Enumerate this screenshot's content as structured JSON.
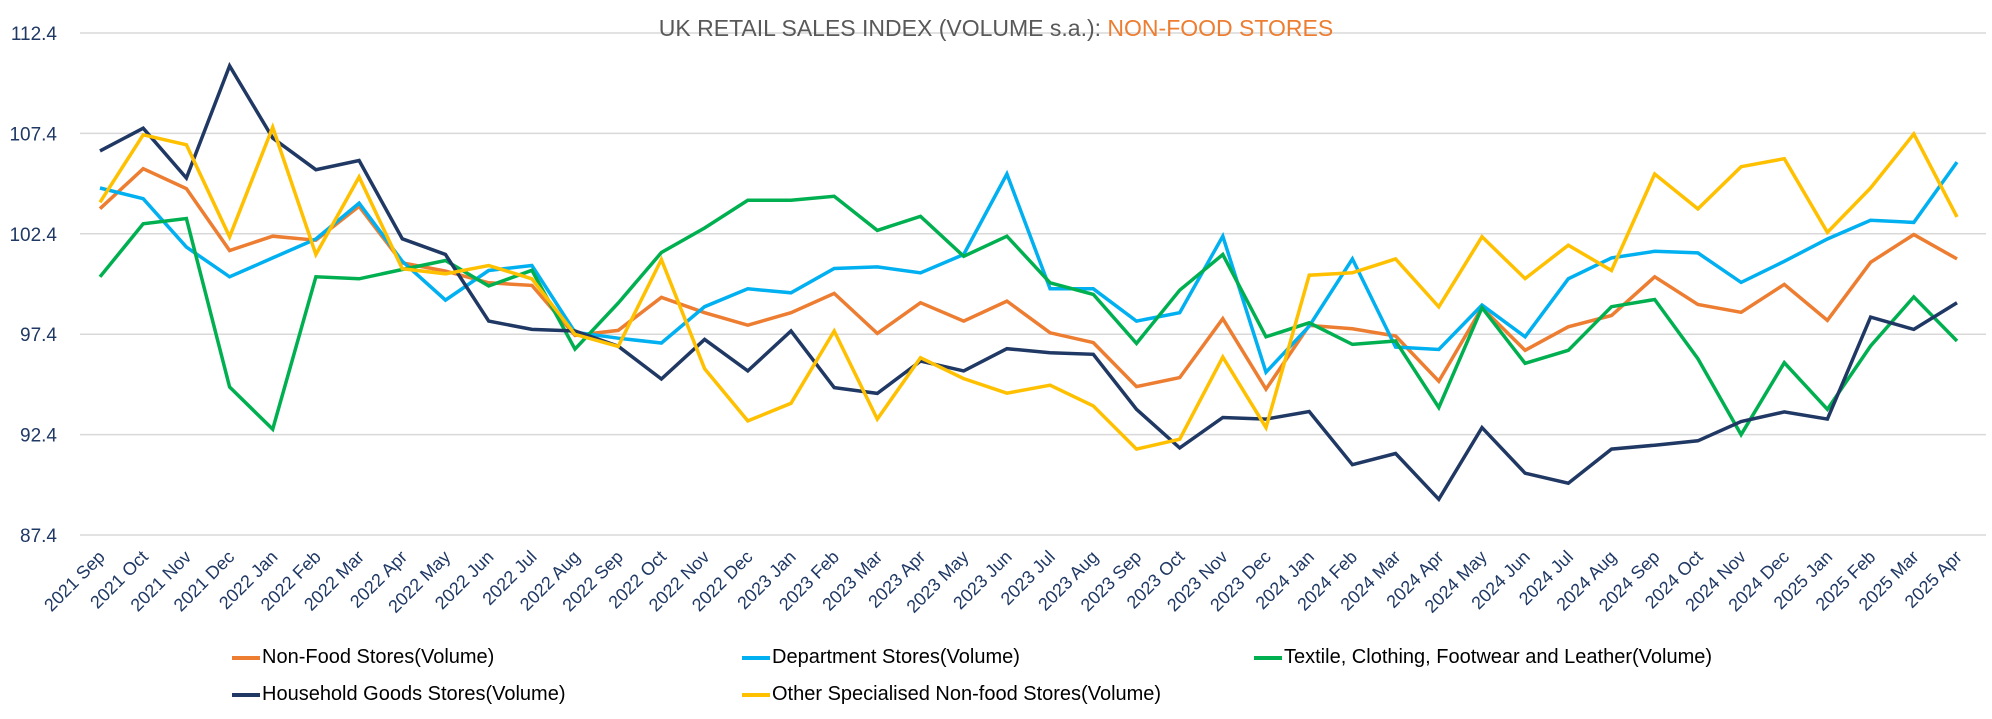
{
  "chart_data": {
    "type": "line",
    "title": "UK RETAIL SALES INDEX (VOLUME s.a.): ",
    "title_accent": "NON-FOOD STORES",
    "title_color": "#595959",
    "title_accent_color": "#ed7d31",
    "xlabel": "",
    "ylabel": "",
    "ylim": [
      87.4,
      112.4
    ],
    "yticks": [
      "87.4",
      "92.4",
      "97.4",
      "102.4",
      "107.4",
      "112.4"
    ],
    "grid": true,
    "legend_position": "bottom",
    "categories": [
      "2021 Sep",
      "2021 Oct",
      "2021 Nov",
      "2021 Dec",
      "2022 Jan",
      "2022 Feb",
      "2022 Mar",
      "2022 Apr",
      "2022 May",
      "2022 Jun",
      "2022 Jul",
      "2022 Aug",
      "2022 Sep",
      "2022 Oct",
      "2022 Nov",
      "2022 Dec",
      "2023 Jan",
      "2023 Feb",
      "2023 Mar",
      "2023 Apr",
      "2023 May",
      "2023 Jun",
      "2023 Jul",
      "2023 Aug",
      "2023 Sep",
      "2023 Oct",
      "2023 Nov",
      "2023 Dec",
      "2024 Jan",
      "2024 Feb",
      "2024 Mar",
      "2024 Apr",
      "2024 May",
      "2024 Jun",
      "2024 Jul",
      "2024 Aug",
      "2024 Sep",
      "2024 Oct",
      "2024 Nov",
      "2024 Dec",
      "2025 Jan",
      "2025 Feb",
      "2025 Mar",
      "2025 Apr"
    ],
    "series": [
      {
        "name": "Non-Food Stores(Volume)",
        "color": "#ed7d31",
        "values": [
          103.65,
          105.64,
          104.65,
          101.57,
          102.28,
          102.08,
          103.77,
          100.95,
          100.54,
          99.96,
          99.83,
          97.34,
          97.59,
          99.24,
          98.47,
          97.85,
          98.47,
          99.43,
          97.44,
          98.97,
          98.05,
          99.05,
          97.47,
          96.98,
          94.79,
          95.24,
          98.17,
          94.66,
          97.84,
          97.67,
          97.31,
          95.06,
          98.72,
          96.6,
          97.77,
          98.33,
          100.26,
          98.88,
          98.49,
          99.88,
          98.09,
          100.98,
          102.36,
          101.15
        ]
      },
      {
        "name": "Department Stores(Volume)",
        "color": "#00b0f0",
        "values": [
          104.68,
          104.15,
          101.74,
          100.26,
          101.2,
          102.14,
          103.93,
          101.03,
          99.1,
          100.57,
          100.82,
          97.5,
          97.2,
          96.96,
          98.77,
          99.66,
          99.46,
          100.67,
          100.75,
          100.46,
          101.37,
          105.38,
          99.66,
          99.66,
          98.05,
          98.47,
          102.28,
          95.51,
          97.8,
          101.15,
          96.76,
          96.64,
          98.85,
          97.27,
          100.16,
          101.2,
          101.53,
          101.45,
          99.98,
          101.03,
          102.14,
          103.07,
          102.97,
          105.97
        ]
      },
      {
        "name": "Textile, Clothing, Footwear and Leather(Volume)",
        "color": "#00b050",
        "values": [
          100.26,
          102.9,
          103.16,
          94.77,
          92.67,
          100.26,
          100.16,
          100.62,
          101.07,
          99.8,
          100.58,
          96.66,
          98.95,
          101.47,
          102.69,
          104.07,
          104.07,
          104.27,
          102.57,
          103.27,
          101.28,
          102.28,
          99.96,
          99.38,
          96.94,
          99.59,
          101.37,
          97.27,
          97.97,
          96.89,
          97.06,
          93.75,
          98.72,
          95.95,
          96.6,
          98.77,
          99.13,
          96.18,
          92.4,
          95.98,
          93.66,
          96.81,
          99.26,
          97.06
        ]
      },
      {
        "name": "Household Goods Stores(Volume)",
        "color": "#203864",
        "values": [
          106.53,
          107.66,
          105.18,
          110.76,
          107.17,
          105.59,
          106.05,
          102.15,
          101.37,
          98.05,
          97.64,
          97.56,
          96.8,
          95.17,
          97.14,
          95.57,
          97.56,
          94.74,
          94.45,
          96.06,
          95.57,
          96.68,
          96.48,
          96.4,
          93.66,
          91.74,
          93.25,
          93.17,
          93.55,
          90.9,
          91.46,
          89.18,
          92.75,
          90.48,
          89.98,
          91.68,
          91.87,
          92.09,
          93.05,
          93.53,
          93.17,
          98.25,
          97.64,
          98.97
        ]
      },
      {
        "name": "Other Specialised Non-food Stores(Volume)",
        "color": "#ffc000",
        "values": [
          103.97,
          107.33,
          106.83,
          102.25,
          107.71,
          101.37,
          105.23,
          100.66,
          100.41,
          100.82,
          100.16,
          97.39,
          96.79,
          101.12,
          95.68,
          93.08,
          93.96,
          97.56,
          93.17,
          96.23,
          95.19,
          94.46,
          94.86,
          93.83,
          91.68,
          92.17,
          96.26,
          92.75,
          100.34,
          100.46,
          101.15,
          98.76,
          102.25,
          100.17,
          101.83,
          100.57,
          105.38,
          103.64,
          105.74,
          106.14,
          102.47,
          104.68,
          107.37,
          103.24
        ]
      }
    ]
  }
}
